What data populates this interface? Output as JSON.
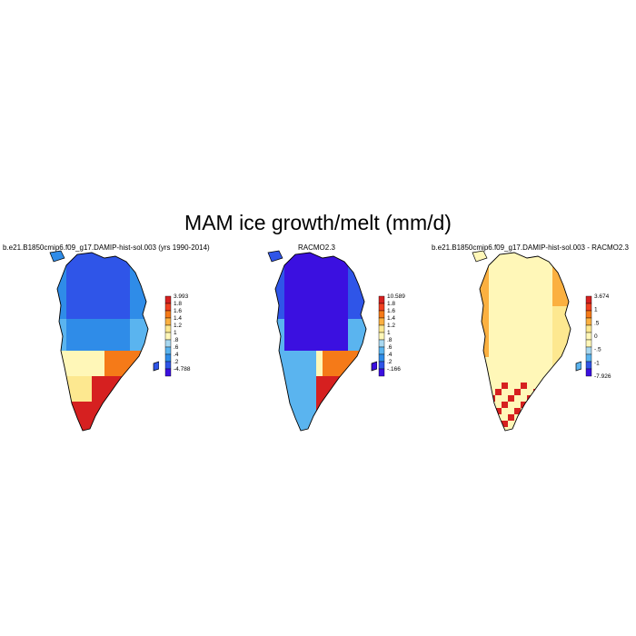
{
  "title": "MAM ice growth/melt (mm/d)",
  "panels": [
    {
      "id": "model",
      "title": "b.e21.B1850cmip6.f09_g17.DAMIP-hist-sol.003 (yrs 1990-2014)",
      "colorbar": {
        "labels": [
          "3.993",
          "1.8",
          "1.6",
          "1.4",
          "1.2",
          "1",
          ".8",
          ".6",
          ".4",
          ".2",
          "-4.788"
        ],
        "colors": [
          "#d62020",
          "#f04020",
          "#f57a18",
          "#fbb040",
          "#fde890",
          "#fff7b8",
          "#a8d8f0",
          "#5ab4ef",
          "#2f8ce8",
          "#2f55e8",
          "#3b10e0"
        ]
      },
      "palette": [
        "#2f55e8",
        "#2f8ce8",
        "#5ab4ef",
        "#fff7b8",
        "#fde890",
        "#f57a18",
        "#d62020"
      ]
    },
    {
      "id": "racmo",
      "title": "RACMO2.3",
      "colorbar": {
        "labels": [
          "10.589",
          "1.8",
          "1.6",
          "1.4",
          "1.2",
          "1",
          ".8",
          ".6",
          ".4",
          ".2",
          "-.166"
        ],
        "colors": [
          "#d62020",
          "#f04020",
          "#f57a18",
          "#fbb040",
          "#fde890",
          "#fff7b8",
          "#a8d8f0",
          "#5ab4ef",
          "#2f8ce8",
          "#2f55e8",
          "#3b10e0"
        ]
      },
      "palette": [
        "#3b10e0",
        "#2f55e8",
        "#5ab4ef",
        "#fff7b8",
        "#fde890",
        "#f57a18",
        "#d62020"
      ]
    },
    {
      "id": "diff",
      "title": "b.e21.B1850cmip6.f09_g17.DAMIP-hist-sol.003 - RACMO2.3",
      "colorbar": {
        "labels": [
          "3.674",
          "1",
          ".5",
          "0",
          "-.5",
          "-1",
          "-7.926"
        ],
        "colors": [
          "#d62020",
          "#f04020",
          "#f57a18",
          "#fbb040",
          "#fde890",
          "#fff7b8",
          "#fff7b8",
          "#a8d8f0",
          "#5ab4ef",
          "#2f55e8",
          "#3b10e0"
        ]
      },
      "palette": [
        "#3b10e0",
        "#5ab4ef",
        "#a8d8f0",
        "#fff7b8",
        "#fde890",
        "#fbb040",
        "#d62020"
      ]
    }
  ]
}
